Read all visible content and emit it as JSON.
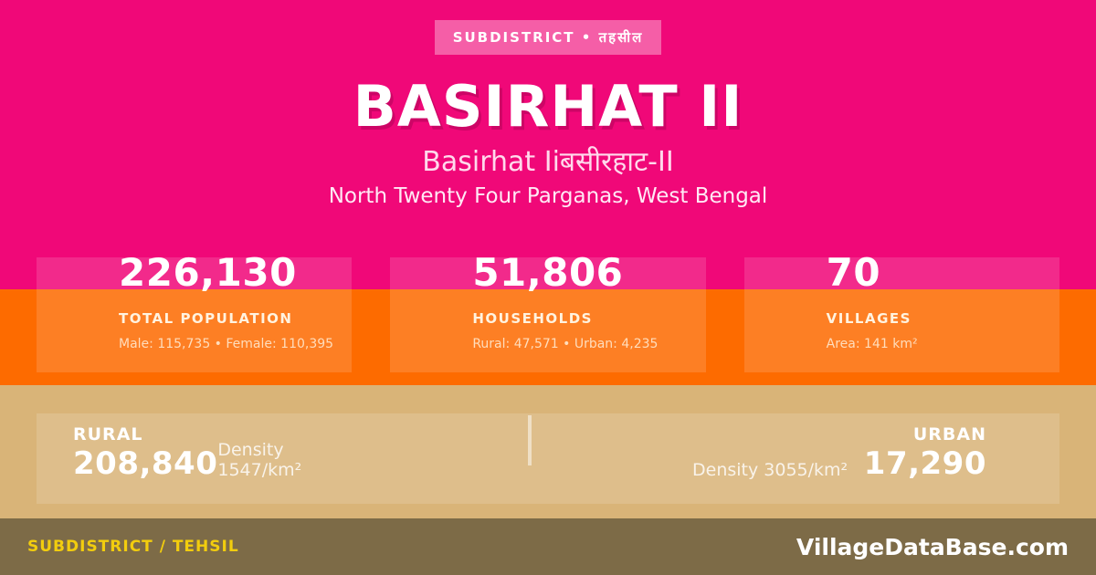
{
  "badge": {
    "label": "SUBDISTRICT • तहसील"
  },
  "header": {
    "title": "BASIRHAT II",
    "subtitle": "Basirhat Iiबसीरहाट-II",
    "location": "North Twenty Four Parganas, West Bengal"
  },
  "stats": [
    {
      "value": "226,130",
      "label": "TOTAL POPULATION",
      "detail": "Male: 115,735 • Female: 110,395"
    },
    {
      "value": "51,806",
      "label": "HOUSEHOLDS",
      "detail": "Rural: 47,571 • Urban: 4,235"
    },
    {
      "value": "70",
      "label": "VILLAGES",
      "detail": "Area: 141 km²"
    }
  ],
  "breakdown": {
    "rural": {
      "label": "RURAL",
      "value": "208,840",
      "density": "Density 1547/km²"
    },
    "urban": {
      "label": "URBAN",
      "value": "17,290",
      "density": "Density 3055/km²"
    }
  },
  "footer": {
    "type_label": "SUBDISTRICT / TEHSIL",
    "site": "VillageDataBase.com"
  },
  "colors": {
    "bg_pink": "#F00878",
    "orange": "#FD6B00",
    "sand": "#D9B478",
    "brown": "#7D6B47",
    "yellow": "#F2CD0E",
    "text_white": "#FFFFFF",
    "subtitle_pink": "#FFD9EC"
  }
}
